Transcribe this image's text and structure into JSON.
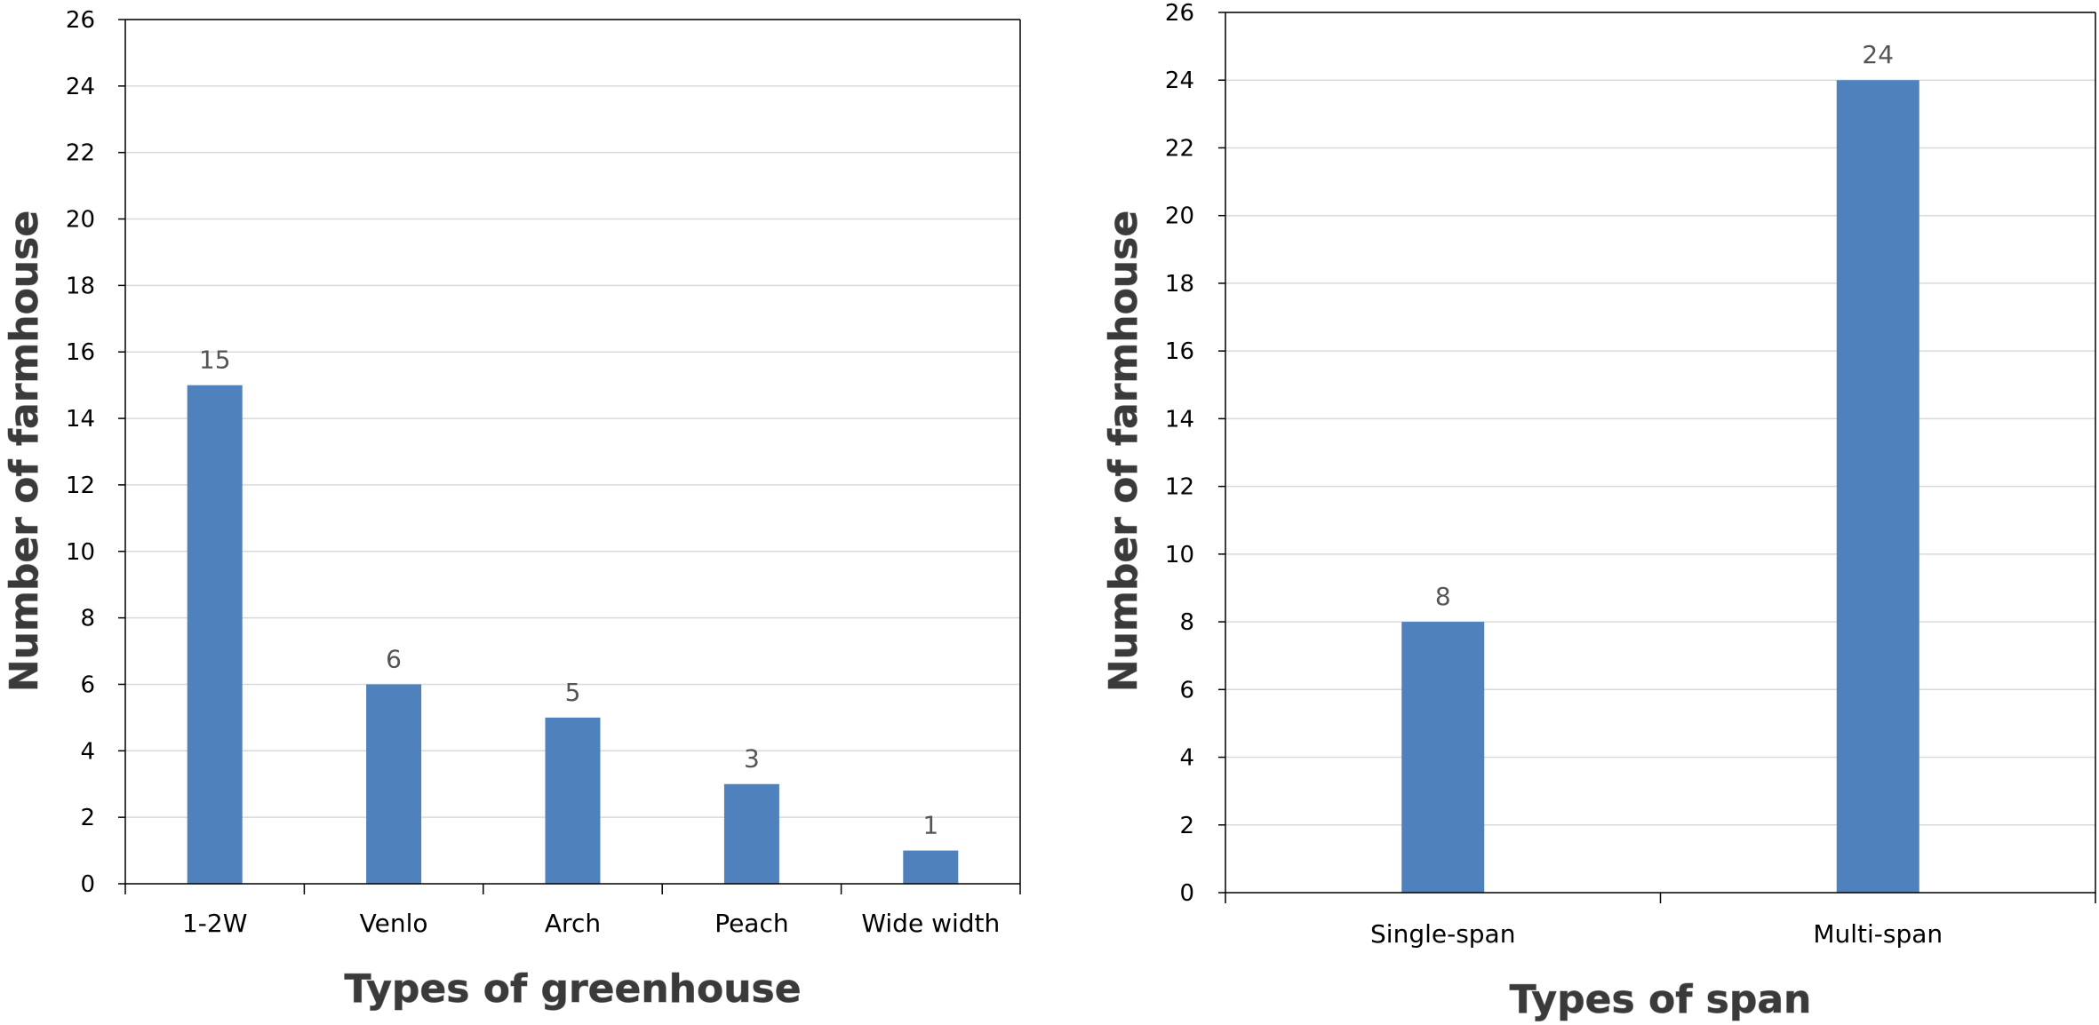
{
  "chart_data": [
    {
      "type": "bar",
      "categories": [
        "1-2W",
        "Venlo",
        "Arch",
        "Peach",
        "Wide width"
      ],
      "values": [
        15,
        6,
        5,
        3,
        1
      ],
      "xlabel": "Types of greenhouse",
      "ylabel": "Number of farmhouse",
      "ylim": [
        0,
        26
      ],
      "ytick_step": 2,
      "grid": true,
      "bar_color": "#4f81bd",
      "data_labels": true
    },
    {
      "type": "bar",
      "categories": [
        "Single-span",
        "Multi-span"
      ],
      "values": [
        8,
        24
      ],
      "xlabel": "Types of span",
      "ylabel": "Number of farmhouse",
      "ylim": [
        0,
        26
      ],
      "ytick_step": 2,
      "grid": true,
      "bar_color": "#4f81bd",
      "data_labels": true
    }
  ]
}
